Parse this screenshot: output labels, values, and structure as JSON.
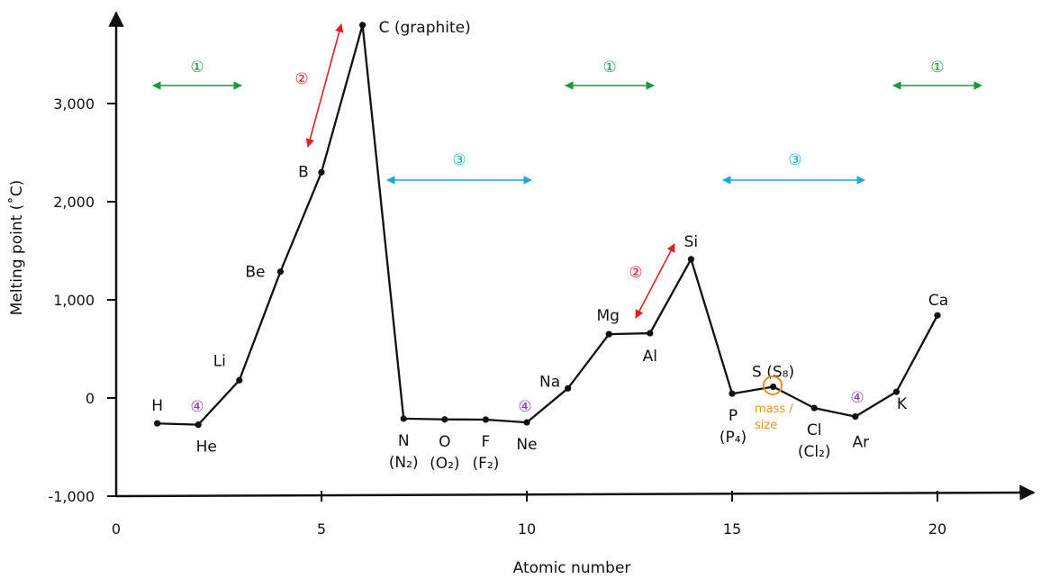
{
  "chart_data": {
    "type": "line",
    "xlabel": "Atomic number",
    "ylabel": "Melting point (˚C)",
    "xlim": [
      0,
      22.5
    ],
    "ylim": [
      -1000,
      4000
    ],
    "x_ticks": [
      0,
      5,
      10,
      15,
      20
    ],
    "x_tick_labels": [
      "0",
      "5",
      "10",
      "15",
      "20"
    ],
    "y_ticks": [
      -1000,
      0,
      1000,
      2000,
      3000
    ],
    "y_tick_labels": [
      "-1,000",
      "0",
      "1,000",
      "2,000",
      "3,000"
    ],
    "grid": false,
    "series": [
      {
        "points": [
          {
            "x": 1,
            "y": -259,
            "label": "H"
          },
          {
            "x": 2,
            "y": -272,
            "label": "He"
          },
          {
            "x": 3,
            "y": 181,
            "label": "Li"
          },
          {
            "x": 4,
            "y": 1287,
            "label": "Be"
          },
          {
            "x": 5,
            "y": 2300,
            "label": "B"
          },
          {
            "x": 6,
            "y": 3800,
            "label": "C (graphite)"
          },
          {
            "x": 7,
            "y": -210,
            "label": "N",
            "sublabel": "(N₂)"
          },
          {
            "x": 8,
            "y": -218,
            "label": "O",
            "sublabel": "(O₂)"
          },
          {
            "x": 9,
            "y": -220,
            "label": "F",
            "sublabel": "(F₂)"
          },
          {
            "x": 10,
            "y": -249,
            "label": "Ne"
          },
          {
            "x": 11,
            "y": 98,
            "label": "Na"
          },
          {
            "x": 12,
            "y": 650,
            "label": "Mg"
          },
          {
            "x": 13,
            "y": 660,
            "label": "Al"
          },
          {
            "x": 14,
            "y": 1414,
            "label": "Si"
          },
          {
            "x": 15,
            "y": 44,
            "label": "P",
            "sublabel": "(P₄)"
          },
          {
            "x": 16,
            "y": 115,
            "label": "S (S₈)"
          },
          {
            "x": 17,
            "y": -102,
            "label": "Cl",
            "sublabel": "(Cl₂)"
          },
          {
            "x": 18,
            "y": -189,
            "label": "Ar"
          },
          {
            "x": 19,
            "y": 63,
            "label": "K"
          },
          {
            "x": 20,
            "y": 842,
            "label": "Ca"
          }
        ]
      }
    ],
    "annotations": {
      "ann1": {
        "text": "①",
        "color": "#1a9a3a"
      },
      "ann2": {
        "text": "②",
        "color": "#e02020"
      },
      "ann3": {
        "text": "③",
        "color": "#1aa8e0"
      },
      "ann4": {
        "text": "④",
        "color": "#8a3ab0"
      },
      "mass_size_line1": "mass /",
      "mass_size_line2": "size",
      "mass_size_color": "#e8901a"
    }
  }
}
